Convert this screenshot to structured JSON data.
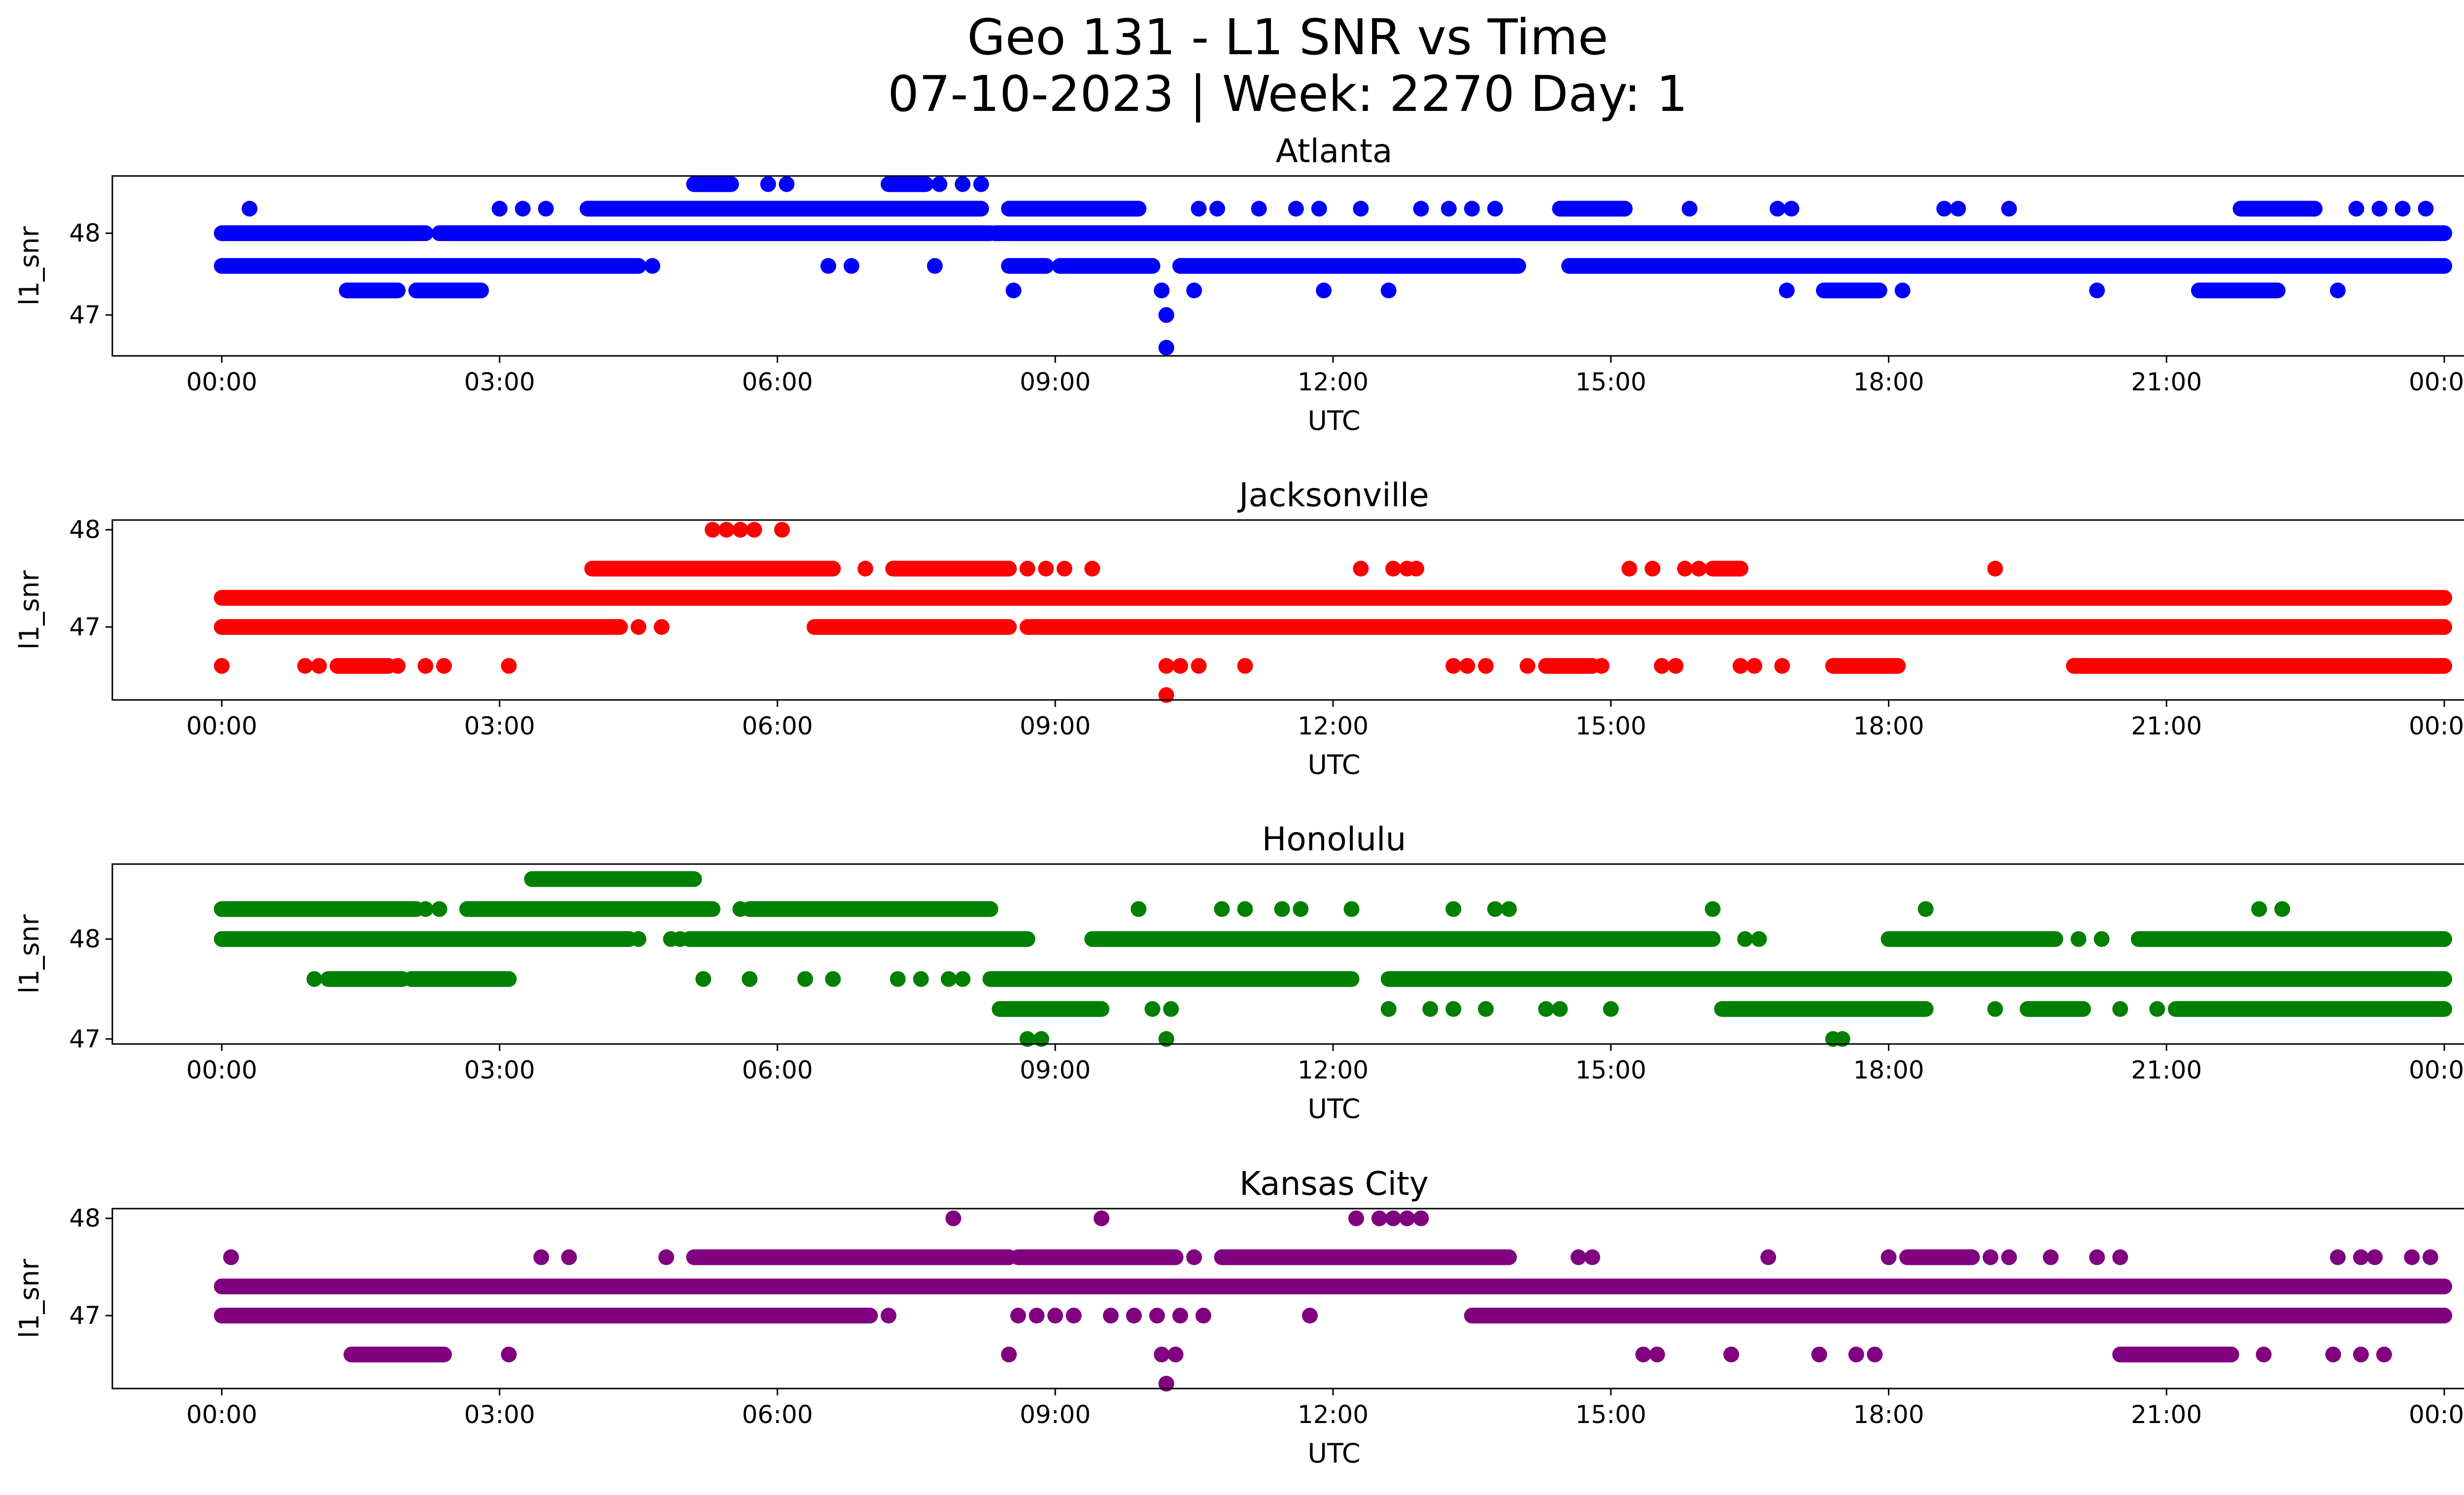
{
  "figure": {
    "title_line1": "Geo 131 - L1 SNR vs Time",
    "title_line2": "07-10-2023 | Week: 2270 Day: 1"
  },
  "chart_data": [
    {
      "type": "scatter",
      "title": "Atlanta",
      "xlabel": "UTC",
      "ylabel": "l1_snr",
      "color": "#0000ff",
      "xticks": [
        "00:00",
        "03:00",
        "06:00",
        "09:00",
        "12:00",
        "15:00",
        "18:00",
        "21:00",
        "00:00"
      ],
      "yticks": [
        47,
        48
      ],
      "xlim_hours": [
        0,
        24
      ],
      "ylim": [
        46.5,
        48.7
      ],
      "bands": [
        {
          "y": 48.0,
          "ranges": [
            [
              0.0,
              2.2
            ],
            [
              2.35,
              8.3
            ],
            [
              8.35,
              24.0
            ]
          ]
        },
        {
          "y": 47.6,
          "ranges": [
            [
              0.0,
              4.5
            ],
            [
              8.5,
              8.9
            ],
            [
              9.05,
              10.05
            ],
            [
              10.35,
              14.0
            ],
            [
              14.55,
              24.0
            ]
          ]
        },
        {
          "y": 48.3,
          "ranges": [
            [
              3.95,
              8.2
            ],
            [
              8.5,
              9.9
            ],
            [
              14.45,
              15.15
            ],
            [
              21.8,
              22.6
            ]
          ]
        },
        {
          "y": 47.3,
          "ranges": [
            [
              1.35,
              1.9
            ],
            [
              2.1,
              2.8
            ],
            [
              17.3,
              17.9
            ],
            [
              21.35,
              22.2
            ]
          ]
        },
        {
          "y": 48.6,
          "ranges": [
            [
              5.1,
              5.5
            ],
            [
              7.2,
              7.6
            ]
          ]
        }
      ],
      "points": [
        {
          "x": 4.65,
          "y": 47.6
        },
        {
          "x": 6.55,
          "y": 47.6
        },
        {
          "x": 6.8,
          "y": 47.6
        },
        {
          "x": 7.7,
          "y": 47.6
        },
        {
          "x": 8.55,
          "y": 47.3
        },
        {
          "x": 10.15,
          "y": 47.3
        },
        {
          "x": 10.2,
          "y": 47.0
        },
        {
          "x": 10.2,
          "y": 46.6
        },
        {
          "x": 10.5,
          "y": 47.3
        },
        {
          "x": 11.9,
          "y": 47.3
        },
        {
          "x": 12.6,
          "y": 47.3
        },
        {
          "x": 16.9,
          "y": 47.3
        },
        {
          "x": 18.15,
          "y": 47.3
        },
        {
          "x": 20.25,
          "y": 47.3
        },
        {
          "x": 22.85,
          "y": 47.3
        },
        {
          "x": 0.3,
          "y": 48.3
        },
        {
          "x": 3.0,
          "y": 48.3
        },
        {
          "x": 3.25,
          "y": 48.3
        },
        {
          "x": 3.5,
          "y": 48.3
        },
        {
          "x": 10.55,
          "y": 48.3
        },
        {
          "x": 10.75,
          "y": 48.3
        },
        {
          "x": 11.2,
          "y": 48.3
        },
        {
          "x": 11.6,
          "y": 48.3
        },
        {
          "x": 11.85,
          "y": 48.3
        },
        {
          "x": 12.3,
          "y": 48.3
        },
        {
          "x": 12.95,
          "y": 48.3
        },
        {
          "x": 13.25,
          "y": 48.3
        },
        {
          "x": 13.5,
          "y": 48.3
        },
        {
          "x": 13.75,
          "y": 48.3
        },
        {
          "x": 15.15,
          "y": 48.3
        },
        {
          "x": 15.85,
          "y": 48.3
        },
        {
          "x": 16.8,
          "y": 48.3
        },
        {
          "x": 16.95,
          "y": 48.3
        },
        {
          "x": 18.6,
          "y": 48.3
        },
        {
          "x": 18.75,
          "y": 48.3
        },
        {
          "x": 19.3,
          "y": 48.3
        },
        {
          "x": 22.6,
          "y": 48.3
        },
        {
          "x": 23.05,
          "y": 48.3
        },
        {
          "x": 23.3,
          "y": 48.3
        },
        {
          "x": 23.55,
          "y": 48.3
        },
        {
          "x": 23.8,
          "y": 48.3
        },
        {
          "x": 5.9,
          "y": 48.6
        },
        {
          "x": 6.1,
          "y": 48.6
        },
        {
          "x": 7.75,
          "y": 48.6
        },
        {
          "x": 8.0,
          "y": 48.6
        },
        {
          "x": 8.2,
          "y": 48.6
        }
      ]
    },
    {
      "type": "scatter",
      "title": "Jacksonville",
      "xlabel": "UTC",
      "ylabel": "l1_snr",
      "color": "#ff0000",
      "xticks": [
        "00:00",
        "03:00",
        "06:00",
        "09:00",
        "12:00",
        "15:00",
        "18:00",
        "21:00",
        "00:00"
      ],
      "yticks": [
        47,
        48
      ],
      "xlim_hours": [
        0,
        24
      ],
      "ylim": [
        46.25,
        48.1
      ],
      "bands": [
        {
          "y": 47.3,
          "ranges": [
            [
              0.0,
              24.0
            ]
          ]
        },
        {
          "y": 47.0,
          "ranges": [
            [
              0.0,
              4.3
            ],
            [
              6.4,
              8.5
            ],
            [
              8.7,
              24.0
            ]
          ]
        },
        {
          "y": 47.6,
          "ranges": [
            [
              4.0,
              6.6
            ],
            [
              7.25,
              8.5
            ],
            [
              16.1,
              16.4
            ]
          ]
        },
        {
          "y": 46.6,
          "ranges": [
            [
              1.25,
              1.8
            ],
            [
              14.3,
              14.8
            ],
            [
              17.4,
              18.1
            ],
            [
              20.0,
              24.0
            ]
          ]
        }
      ],
      "points": [
        {
          "x": 0.0,
          "y": 46.6
        },
        {
          "x": 0.9,
          "y": 46.6
        },
        {
          "x": 1.05,
          "y": 46.6
        },
        {
          "x": 1.9,
          "y": 46.6
        },
        {
          "x": 2.2,
          "y": 46.6
        },
        {
          "x": 2.4,
          "y": 46.6
        },
        {
          "x": 3.1,
          "y": 46.6
        },
        {
          "x": 10.2,
          "y": 46.6
        },
        {
          "x": 10.35,
          "y": 46.6
        },
        {
          "x": 10.55,
          "y": 46.6
        },
        {
          "x": 11.05,
          "y": 46.6
        },
        {
          "x": 13.3,
          "y": 46.6
        },
        {
          "x": 13.45,
          "y": 46.6
        },
        {
          "x": 13.65,
          "y": 46.6
        },
        {
          "x": 14.1,
          "y": 46.6
        },
        {
          "x": 14.9,
          "y": 46.6
        },
        {
          "x": 15.55,
          "y": 46.6
        },
        {
          "x": 15.7,
          "y": 46.6
        },
        {
          "x": 16.4,
          "y": 46.6
        },
        {
          "x": 16.55,
          "y": 46.6
        },
        {
          "x": 16.85,
          "y": 46.6
        },
        {
          "x": 10.2,
          "y": 46.3
        },
        {
          "x": 4.5,
          "y": 47.0
        },
        {
          "x": 4.75,
          "y": 47.0
        },
        {
          "x": 5.3,
          "y": 48.0
        },
        {
          "x": 5.45,
          "y": 48.0
        },
        {
          "x": 5.6,
          "y": 48.0
        },
        {
          "x": 5.75,
          "y": 48.0
        },
        {
          "x": 6.05,
          "y": 48.0
        },
        {
          "x": 6.95,
          "y": 47.6
        },
        {
          "x": 8.7,
          "y": 47.6
        },
        {
          "x": 8.9,
          "y": 47.6
        },
        {
          "x": 9.1,
          "y": 47.6
        },
        {
          "x": 9.4,
          "y": 47.6
        },
        {
          "x": 12.3,
          "y": 47.6
        },
        {
          "x": 12.65,
          "y": 47.6
        },
        {
          "x": 12.8,
          "y": 47.6
        },
        {
          "x": 12.9,
          "y": 47.6
        },
        {
          "x": 15.2,
          "y": 47.6
        },
        {
          "x": 15.45,
          "y": 47.6
        },
        {
          "x": 15.8,
          "y": 47.6
        },
        {
          "x": 15.95,
          "y": 47.6
        },
        {
          "x": 19.15,
          "y": 47.6
        },
        {
          "x": 21.25,
          "y": 47.3
        },
        {
          "x": 22.25,
          "y": 47.3
        }
      ]
    },
    {
      "type": "scatter",
      "title": "Honolulu",
      "xlabel": "UTC",
      "ylabel": "l1_snr",
      "color": "#008000",
      "xticks": [
        "00:00",
        "03:00",
        "06:00",
        "09:00",
        "12:00",
        "15:00",
        "18:00",
        "21:00",
        "00:00"
      ],
      "yticks": [
        47,
        48
      ],
      "xlim_hours": [
        0,
        24
      ],
      "ylim": [
        46.95,
        48.75
      ],
      "bands": [
        {
          "y": 48.3,
          "ranges": [
            [
              0.0,
              2.1
            ],
            [
              2.65,
              5.3
            ],
            [
              5.7,
              8.3
            ]
          ]
        },
        {
          "y": 48.0,
          "ranges": [
            [
              0.0,
              4.4
            ],
            [
              5.05,
              8.7
            ],
            [
              9.4,
              16.1
            ],
            [
              18.0,
              19.8
            ],
            [
              20.7,
              24.0
            ]
          ]
        },
        {
          "y": 47.6,
          "ranges": [
            [
              1.15,
              1.95
            ],
            [
              2.05,
              3.1
            ],
            [
              8.3,
              12.2
            ],
            [
              12.6,
              24.0
            ]
          ]
        },
        {
          "y": 47.3,
          "ranges": [
            [
              8.4,
              9.5
            ],
            [
              16.2,
              18.4
            ],
            [
              19.5,
              20.1
            ],
            [
              21.1,
              24.0
            ]
          ]
        },
        {
          "y": 48.6,
          "ranges": [
            [
              3.35,
              5.1
            ]
          ]
        }
      ],
      "points": [
        {
          "x": 2.2,
          "y": 48.3
        },
        {
          "x": 2.35,
          "y": 48.3
        },
        {
          "x": 5.6,
          "y": 48.3
        },
        {
          "x": 9.9,
          "y": 48.3
        },
        {
          "x": 10.8,
          "y": 48.3
        },
        {
          "x": 11.05,
          "y": 48.3
        },
        {
          "x": 11.45,
          "y": 48.3
        },
        {
          "x": 11.65,
          "y": 48.3
        },
        {
          "x": 12.2,
          "y": 48.3
        },
        {
          "x": 13.3,
          "y": 48.3
        },
        {
          "x": 13.75,
          "y": 48.3
        },
        {
          "x": 13.9,
          "y": 48.3
        },
        {
          "x": 16.1,
          "y": 48.3
        },
        {
          "x": 18.4,
          "y": 48.3
        },
        {
          "x": 22.0,
          "y": 48.3
        },
        {
          "x": 22.25,
          "y": 48.3
        },
        {
          "x": 4.5,
          "y": 48.0
        },
        {
          "x": 4.85,
          "y": 48.0
        },
        {
          "x": 4.95,
          "y": 48.0
        },
        {
          "x": 16.45,
          "y": 48.0
        },
        {
          "x": 16.6,
          "y": 48.0
        },
        {
          "x": 20.05,
          "y": 48.0
        },
        {
          "x": 20.3,
          "y": 48.0
        },
        {
          "x": 1.0,
          "y": 47.6
        },
        {
          "x": 5.2,
          "y": 47.6
        },
        {
          "x": 5.7,
          "y": 47.6
        },
        {
          "x": 6.3,
          "y": 47.6
        },
        {
          "x": 6.6,
          "y": 47.6
        },
        {
          "x": 7.3,
          "y": 47.6
        },
        {
          "x": 7.55,
          "y": 47.6
        },
        {
          "x": 7.85,
          "y": 47.6
        },
        {
          "x": 8.0,
          "y": 47.6
        },
        {
          "x": 10.05,
          "y": 47.3
        },
        {
          "x": 10.25,
          "y": 47.3
        },
        {
          "x": 12.6,
          "y": 47.3
        },
        {
          "x": 13.05,
          "y": 47.3
        },
        {
          "x": 13.3,
          "y": 47.3
        },
        {
          "x": 13.65,
          "y": 47.3
        },
        {
          "x": 14.3,
          "y": 47.3
        },
        {
          "x": 14.45,
          "y": 47.3
        },
        {
          "x": 15.0,
          "y": 47.3
        },
        {
          "x": 19.15,
          "y": 47.3
        },
        {
          "x": 20.5,
          "y": 47.3
        },
        {
          "x": 20.9,
          "y": 47.3
        },
        {
          "x": 23.55,
          "y": 47.3
        },
        {
          "x": 23.85,
          "y": 47.3
        },
        {
          "x": 8.7,
          "y": 47.0
        },
        {
          "x": 8.85,
          "y": 47.0
        },
        {
          "x": 10.2,
          "y": 47.0
        },
        {
          "x": 17.4,
          "y": 47.0
        },
        {
          "x": 17.5,
          "y": 47.0
        }
      ]
    },
    {
      "type": "scatter",
      "title": "Kansas City",
      "xlabel": "UTC",
      "ylabel": "l1_snr",
      "color": "#800080",
      "xticks": [
        "00:00",
        "03:00",
        "06:00",
        "09:00",
        "12:00",
        "15:00",
        "18:00",
        "21:00",
        "00:00"
      ],
      "yticks": [
        47,
        48
      ],
      "xlim_hours": [
        0,
        24
      ],
      "ylim": [
        46.25,
        48.1
      ],
      "bands": [
        {
          "y": 47.3,
          "ranges": [
            [
              0.0,
              24.0
            ]
          ]
        },
        {
          "y": 47.0,
          "ranges": [
            [
              0.0,
              7.0
            ],
            [
              13.5,
              24.0
            ]
          ]
        },
        {
          "y": 47.6,
          "ranges": [
            [
              5.1,
              8.5
            ],
            [
              8.6,
              10.3
            ],
            [
              10.8,
              13.9
            ],
            [
              18.2,
              18.9
            ]
          ]
        },
        {
          "y": 46.6,
          "ranges": [
            [
              1.4,
              2.4
            ],
            [
              20.5,
              21.7
            ]
          ]
        }
      ],
      "points": [
        {
          "x": 0.1,
          "y": 47.6
        },
        {
          "x": 3.45,
          "y": 47.6
        },
        {
          "x": 3.75,
          "y": 47.6
        },
        {
          "x": 4.8,
          "y": 47.6
        },
        {
          "x": 6.1,
          "y": 47.6
        },
        {
          "x": 6.3,
          "y": 47.6
        },
        {
          "x": 6.5,
          "y": 47.6
        },
        {
          "x": 10.5,
          "y": 47.6
        },
        {
          "x": 14.65,
          "y": 47.6
        },
        {
          "x": 14.8,
          "y": 47.6
        },
        {
          "x": 16.7,
          "y": 47.6
        },
        {
          "x": 18.0,
          "y": 47.6
        },
        {
          "x": 19.1,
          "y": 47.6
        },
        {
          "x": 19.3,
          "y": 47.6
        },
        {
          "x": 19.75,
          "y": 47.6
        },
        {
          "x": 20.25,
          "y": 47.6
        },
        {
          "x": 20.5,
          "y": 47.6
        },
        {
          "x": 22.85,
          "y": 47.6
        },
        {
          "x": 23.1,
          "y": 47.6
        },
        {
          "x": 23.25,
          "y": 47.6
        },
        {
          "x": 23.65,
          "y": 47.6
        },
        {
          "x": 23.85,
          "y": 47.6
        },
        {
          "x": 7.9,
          "y": 48.0
        },
        {
          "x": 9.5,
          "y": 48.0
        },
        {
          "x": 12.25,
          "y": 48.0
        },
        {
          "x": 12.5,
          "y": 48.0
        },
        {
          "x": 12.65,
          "y": 48.0
        },
        {
          "x": 12.8,
          "y": 48.0
        },
        {
          "x": 12.95,
          "y": 48.0
        },
        {
          "x": 7.2,
          "y": 47.0
        },
        {
          "x": 8.6,
          "y": 47.0
        },
        {
          "x": 8.8,
          "y": 47.0
        },
        {
          "x": 9.0,
          "y": 47.0
        },
        {
          "x": 9.2,
          "y": 47.0
        },
        {
          "x": 9.6,
          "y": 47.0
        },
        {
          "x": 9.85,
          "y": 47.0
        },
        {
          "x": 10.1,
          "y": 47.0
        },
        {
          "x": 10.35,
          "y": 47.0
        },
        {
          "x": 10.6,
          "y": 47.0
        },
        {
          "x": 11.75,
          "y": 47.0
        },
        {
          "x": 3.1,
          "y": 46.6
        },
        {
          "x": 2.35,
          "y": 46.6
        },
        {
          "x": 8.5,
          "y": 46.6
        },
        {
          "x": 10.15,
          "y": 46.6
        },
        {
          "x": 10.3,
          "y": 46.6
        },
        {
          "x": 15.35,
          "y": 46.6
        },
        {
          "x": 15.5,
          "y": 46.6
        },
        {
          "x": 16.3,
          "y": 46.6
        },
        {
          "x": 17.25,
          "y": 46.6
        },
        {
          "x": 17.65,
          "y": 46.6
        },
        {
          "x": 17.85,
          "y": 46.6
        },
        {
          "x": 22.05,
          "y": 46.6
        },
        {
          "x": 22.8,
          "y": 46.6
        },
        {
          "x": 23.1,
          "y": 46.6
        },
        {
          "x": 23.35,
          "y": 46.6
        },
        {
          "x": 10.2,
          "y": 46.3
        }
      ]
    }
  ]
}
